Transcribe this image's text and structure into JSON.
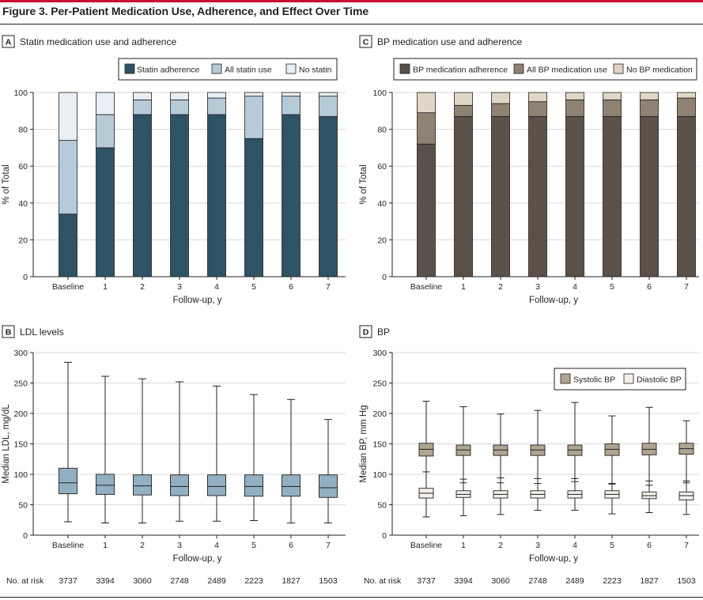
{
  "figure_title": "Figure 3. Per-Patient Medication Use, Adherence, and Effect Over Time",
  "colors": {
    "statin_adherence": "#2e5364",
    "all_statin_use": "#b7cad8",
    "no_statin": "#e9eff4",
    "bp_adherence": "#5b5148",
    "all_bp_use": "#8f8273",
    "no_bp": "#dfd6c5",
    "ldl_box": "#93b0c2",
    "systolic_box": "#b0a591",
    "diastolic_box": "#f3f0ea",
    "grid": "#d9d9d9",
    "accent": "#c8102e"
  },
  "risk_table": {
    "label": "No. at risk",
    "values": [
      "3737",
      "3394",
      "3060",
      "2748",
      "2489",
      "2223",
      "1827",
      "1503"
    ]
  },
  "chart_data": [
    {
      "panel": "A",
      "type": "bar",
      "stacked": true,
      "title": "Statin medication use and adherence",
      "xlabel": "Follow-up, y",
      "ylabel": "% of Total",
      "ylim": [
        0,
        100
      ],
      "yticks": [
        "0",
        "20",
        "40",
        "60",
        "80",
        "100"
      ],
      "categories": [
        "Baseline",
        "1",
        "2",
        "3",
        "4",
        "5",
        "6",
        "7"
      ],
      "legend_position": "top-right",
      "series": [
        {
          "name": "Statin adherence",
          "values": [
            34,
            70,
            88,
            88,
            88,
            75,
            88,
            87
          ]
        },
        {
          "name": "All statin use",
          "values": [
            40,
            18,
            8,
            8,
            9,
            23,
            10,
            11
          ]
        },
        {
          "name": "No statin",
          "values": [
            26,
            12,
            4,
            4,
            3,
            2,
            2,
            2
          ]
        }
      ]
    },
    {
      "panel": "C",
      "type": "bar",
      "stacked": true,
      "title": "BP medication use and adherence",
      "xlabel": "Follow-up, y",
      "ylabel": "% of Total",
      "ylim": [
        0,
        100
      ],
      "yticks": [
        "0",
        "20",
        "40",
        "60",
        "80",
        "100"
      ],
      "categories": [
        "Baseline",
        "1",
        "2",
        "3",
        "4",
        "5",
        "6",
        "7"
      ],
      "legend_position": "top",
      "series": [
        {
          "name": "BP medication adherence",
          "values": [
            72,
            87,
            87,
            87,
            87,
            87,
            87,
            87
          ]
        },
        {
          "name": "All BP medication use",
          "values": [
            17,
            6,
            7,
            8,
            9,
            9,
            9,
            10
          ]
        },
        {
          "name": "No BP medication",
          "values": [
            11,
            7,
            6,
            5,
            4,
            4,
            4,
            3
          ]
        }
      ]
    },
    {
      "panel": "B",
      "type": "box",
      "title": "LDL levels",
      "xlabel": "Follow-up, y",
      "ylabel": "Median LDL, mg/dL",
      "ylim": [
        0,
        300
      ],
      "yticks": [
        "0",
        "50",
        "100",
        "150",
        "200",
        "250",
        "300"
      ],
      "categories": [
        "Baseline",
        "1",
        "2",
        "3",
        "4",
        "5",
        "6",
        "7"
      ],
      "series": [
        {
          "name": "",
          "boxes": [
            {
              "min": 22,
              "q1": 68,
              "median": 86,
              "q3": 110,
              "max": 284
            },
            {
              "min": 20,
              "q1": 67,
              "median": 82,
              "q3": 100,
              "max": 261
            },
            {
              "min": 20,
              "q1": 66,
              "median": 81,
              "q3": 99,
              "max": 257
            },
            {
              "min": 23,
              "q1": 65,
              "median": 80,
              "q3": 99,
              "max": 252
            },
            {
              "min": 23,
              "q1": 65,
              "median": 80,
              "q3": 99,
              "max": 245
            },
            {
              "min": 24,
              "q1": 64,
              "median": 80,
              "q3": 99,
              "max": 231
            },
            {
              "min": 20,
              "q1": 64,
              "median": 80,
              "q3": 99,
              "max": 223
            },
            {
              "min": 20,
              "q1": 62,
              "median": 78,
              "q3": 99,
              "max": 190
            }
          ]
        }
      ]
    },
    {
      "panel": "D",
      "type": "box",
      "title": "BP",
      "xlabel": "Follow-up, y",
      "ylabel": "Median BP, mm Hg",
      "ylim": [
        0,
        300
      ],
      "yticks": [
        "0",
        "50",
        "100",
        "150",
        "200",
        "250",
        "300"
      ],
      "categories": [
        "Baseline",
        "1",
        "2",
        "3",
        "4",
        "5",
        "6",
        "7"
      ],
      "legend_position": "top-right",
      "series": [
        {
          "name": "Systolic BP",
          "boxes": [
            {
              "min": 76,
              "q1": 130,
              "median": 141,
              "q3": 151,
              "max": 220
            },
            {
              "min": 86,
              "q1": 131,
              "median": 140,
              "q3": 148,
              "max": 211
            },
            {
              "min": 86,
              "q1": 131,
              "median": 140,
              "q3": 148,
              "max": 199
            },
            {
              "min": 85,
              "q1": 131,
              "median": 140,
              "q3": 148,
              "max": 205
            },
            {
              "min": 88,
              "q1": 131,
              "median": 140,
              "q3": 148,
              "max": 218
            },
            {
              "min": 85,
              "q1": 131,
              "median": 141,
              "q3": 150,
              "max": 196
            },
            {
              "min": 82,
              "q1": 132,
              "median": 141,
              "q3": 151,
              "max": 210
            },
            {
              "min": 86,
              "q1": 133,
              "median": 142,
              "q3": 151,
              "max": 188
            }
          ]
        },
        {
          "name": "Diastolic BP",
          "boxes": [
            {
              "min": 30,
              "q1": 61,
              "median": 69,
              "q3": 77,
              "max": 104
            },
            {
              "min": 32,
              "q1": 62,
              "median": 67,
              "q3": 73,
              "max": 92
            },
            {
              "min": 34,
              "q1": 61,
              "median": 67,
              "q3": 73,
              "max": 94
            },
            {
              "min": 41,
              "q1": 61,
              "median": 67,
              "q3": 73,
              "max": 93
            },
            {
              "min": 41,
              "q1": 61,
              "median": 67,
              "q3": 73,
              "max": 93
            },
            {
              "min": 35,
              "q1": 61,
              "median": 67,
              "q3": 73,
              "max": 84
            },
            {
              "min": 37,
              "q1": 60,
              "median": 65,
              "q3": 71,
              "max": 89
            },
            {
              "min": 34,
              "q1": 58,
              "median": 65,
              "q3": 71,
              "max": 89
            }
          ]
        }
      ]
    }
  ]
}
